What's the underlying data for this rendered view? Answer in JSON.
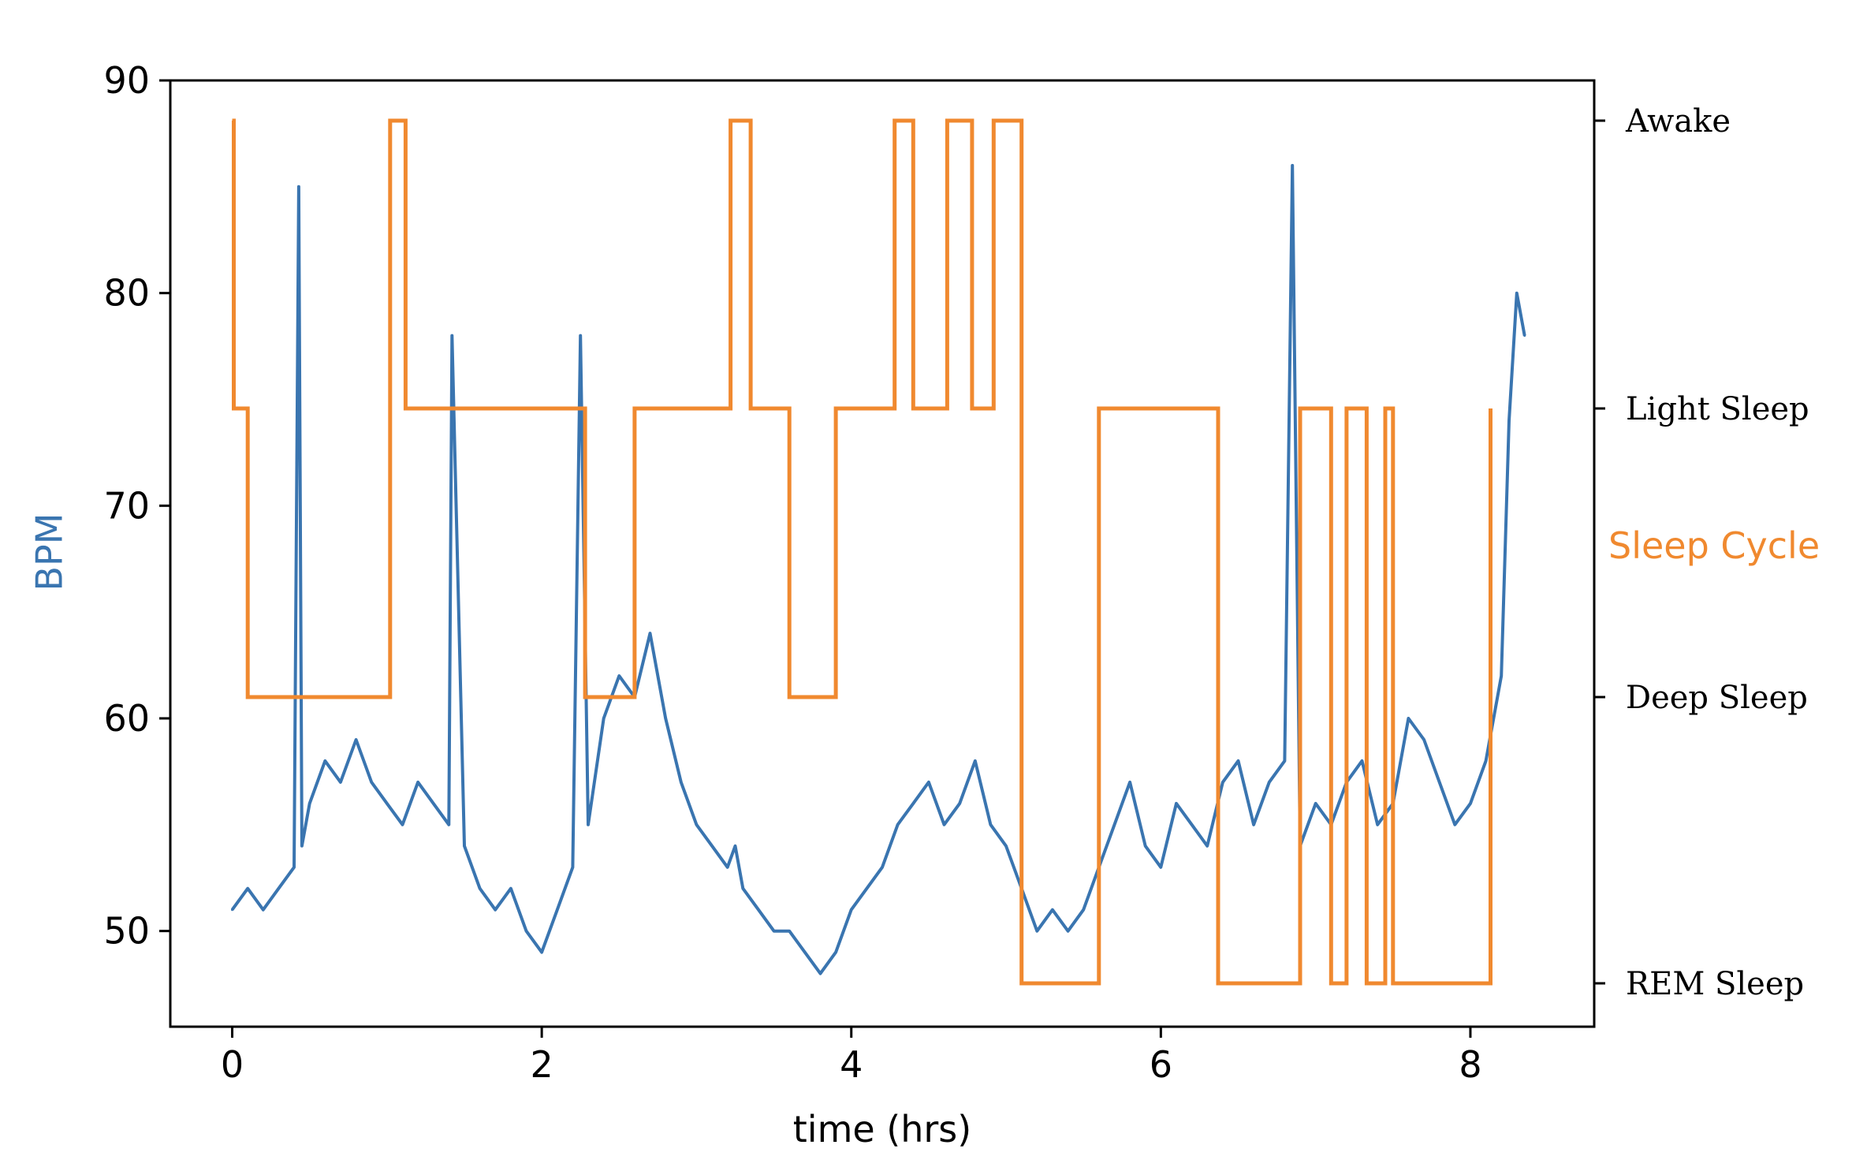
{
  "chart_data": {
    "type": "line",
    "xlabel": "time (hrs)",
    "ylabel": "BPM",
    "y2label": "Sleep Cycle",
    "xlim": [
      -0.4,
      8.8
    ],
    "ylim": [
      45.5,
      90
    ],
    "xticks": [
      0,
      2,
      4,
      6,
      8
    ],
    "yticks": [
      50,
      60,
      70,
      80,
      90
    ],
    "y2_categories": [
      "REM Sleep",
      "Deep Sleep",
      "Light Sleep",
      "Awake"
    ],
    "grid": false,
    "colors": {
      "bpm": "#3a75b0",
      "sleep": "#f0892f",
      "axis": "#000000"
    },
    "series": [
      {
        "name": "BPM",
        "axis": "left",
        "x": [
          0.0,
          0.1,
          0.2,
          0.3,
          0.4,
          0.43,
          0.45,
          0.5,
          0.6,
          0.7,
          0.8,
          0.9,
          1.0,
          1.1,
          1.2,
          1.3,
          1.4,
          1.42,
          1.5,
          1.6,
          1.7,
          1.8,
          1.9,
          2.0,
          2.1,
          2.2,
          2.25,
          2.3,
          2.4,
          2.5,
          2.6,
          2.7,
          2.8,
          2.9,
          3.0,
          3.1,
          3.2,
          3.25,
          3.3,
          3.4,
          3.5,
          3.6,
          3.7,
          3.8,
          3.9,
          4.0,
          4.1,
          4.2,
          4.3,
          4.4,
          4.5,
          4.6,
          4.7,
          4.8,
          4.9,
          5.0,
          5.1,
          5.2,
          5.3,
          5.4,
          5.5,
          5.6,
          5.7,
          5.8,
          5.9,
          6.0,
          6.1,
          6.2,
          6.3,
          6.4,
          6.5,
          6.6,
          6.7,
          6.8,
          6.85,
          6.9,
          7.0,
          7.1,
          7.2,
          7.3,
          7.4,
          7.5,
          7.6,
          7.7,
          7.8,
          7.9,
          8.0,
          8.1,
          8.2,
          8.25,
          8.3,
          8.35
        ],
        "y": [
          51,
          52,
          51,
          52,
          53,
          85,
          54,
          56,
          58,
          57,
          59,
          57,
          56,
          55,
          57,
          56,
          55,
          78,
          54,
          52,
          51,
          52,
          50,
          49,
          51,
          53,
          78,
          55,
          60,
          62,
          61,
          64,
          60,
          57,
          55,
          54,
          53,
          54,
          52,
          51,
          50,
          50,
          49,
          48,
          49,
          51,
          52,
          53,
          55,
          56,
          57,
          55,
          56,
          58,
          55,
          54,
          52,
          50,
          51,
          50,
          51,
          53,
          55,
          57,
          54,
          53,
          56,
          55,
          54,
          57,
          58,
          55,
          57,
          58,
          86,
          54,
          56,
          55,
          57,
          58,
          55,
          56,
          60,
          59,
          57,
          55,
          56,
          58,
          62,
          74,
          80,
          78
        ]
      },
      {
        "name": "Sleep Cycle",
        "axis": "right",
        "x": [
          0,
          0.01,
          0.1,
          1.02,
          1.12,
          2.28,
          2.6,
          3.22,
          3.35,
          3.6,
          3.9,
          4.28,
          4.4,
          4.62,
          4.78,
          4.92,
          5.1,
          5.6,
          6.37,
          6.9,
          7.1,
          7.2,
          7.33,
          7.45,
          7.5,
          7.55,
          8.13
        ],
        "y": [
          "Awake",
          "Light Sleep",
          "Deep Sleep",
          "Awake",
          "Light Sleep",
          "Deep Sleep",
          "Light Sleep",
          "Awake",
          "Light Sleep",
          "Deep Sleep",
          "Light Sleep",
          "Awake",
          "Light Sleep",
          "Awake",
          "Light Sleep",
          "Awake",
          "REM Sleep",
          "Light Sleep",
          "REM Sleep",
          "Light Sleep",
          "REM Sleep",
          "Light Sleep",
          "REM Sleep",
          "Light Sleep",
          "REM Sleep",
          "REM Sleep",
          "Light Sleep"
        ]
      }
    ]
  }
}
